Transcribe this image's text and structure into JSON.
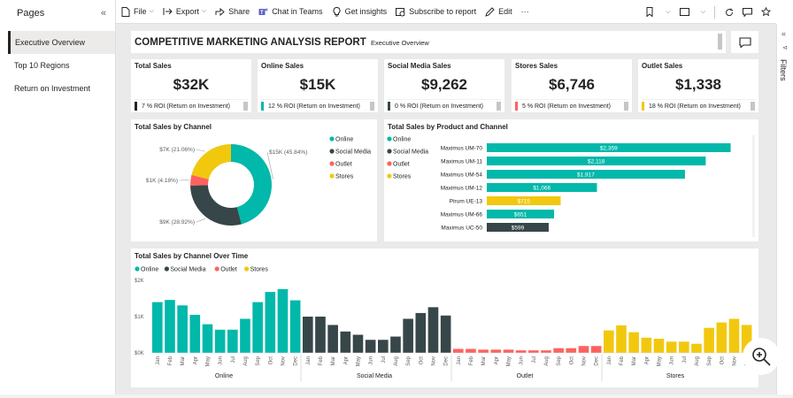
{
  "pages_pane": {
    "title": "Pages",
    "items": [
      {
        "label": "Executive Overview"
      },
      {
        "label": "Top 10 Regions"
      },
      {
        "label": "Return on Investment"
      }
    ]
  },
  "toolbar": {
    "file": "File",
    "export": "Export",
    "share": "Share",
    "chat": "Chat in Teams",
    "insights": "Get insights",
    "subscribe": "Subscribe to report",
    "edit": "Edit",
    "more": "···"
  },
  "filters_pane": {
    "label": "Filters"
  },
  "report": {
    "title": "COMPETITIVE MARKETING ANALYSIS REPORT",
    "subtitle": "Executive Overview"
  },
  "kpis": [
    {
      "title": "Total Sales",
      "value": "$32K",
      "roi": "7 % ROI (Return on Investment)",
      "color": "#252423"
    },
    {
      "title": "Online Sales",
      "value": "$15K",
      "roi": "12 % ROI (Return on Investment)",
      "color": "#01b8aa"
    },
    {
      "title": "Social Media Sales",
      "value": "$9,262",
      "roi": "0 % ROI (Return on Investment)",
      "color": "#374649"
    },
    {
      "title": "Stores Sales",
      "value": "$6,746",
      "roi": "5 % ROI (Return on Investment)",
      "color": "#fd625e"
    },
    {
      "title": "Outlet Sales",
      "value": "$1,338",
      "roi": "18 % ROI (Return on Investment)",
      "color": "#f2c80f"
    }
  ],
  "colors": {
    "online": "#01b8aa",
    "social": "#374649",
    "outlet": "#fd625e",
    "stores": "#f2c80f"
  },
  "chart_data": [
    {
      "type": "pie",
      "title": "Total Sales by Channel",
      "legend": [
        "Online",
        "Social Media",
        "Outlet",
        "Stores"
      ],
      "slices": [
        {
          "name": "Online",
          "value": 15,
          "label": "$15K (45.84%)",
          "percent": 45.84
        },
        {
          "name": "Social Media",
          "value": 9,
          "label": "$9K (28.92%)",
          "percent": 28.92
        },
        {
          "name": "Outlet",
          "value": 1,
          "label": "$1K (4.18%)",
          "percent": 4.18
        },
        {
          "name": "Stores",
          "value": 7,
          "label": "$7K (21.06%)",
          "percent": 21.06
        }
      ]
    },
    {
      "type": "bar",
      "title": "Total Sales by Product and Channel",
      "legend": [
        "Online",
        "Social Media",
        "Outlet",
        "Stores"
      ],
      "categories": [
        "Maximus UM-70",
        "Maximus UM-11",
        "Maximus UM-54",
        "Maximus UM-12",
        "Pirum UE-13",
        "Maximus UM-66",
        "Maximus UC-50"
      ],
      "values": [
        2359,
        2118,
        1917,
        1066,
        715,
        651,
        599
      ],
      "labels": [
        "$2,359",
        "$2,118",
        "$1,917",
        "$1,066",
        "$715",
        "$651",
        "$599"
      ],
      "bar_channels": [
        "Online",
        "Online",
        "Online",
        "Online",
        "Stores",
        "Online",
        "Social Media"
      ],
      "xlim": [
        0,
        2500
      ]
    },
    {
      "type": "bar",
      "title": "Total Sales by Channel Over Time",
      "legend": [
        "Online",
        "Social Media",
        "Outlet",
        "Stores"
      ],
      "y_ticks": [
        "$0K",
        "$1K",
        "$2K"
      ],
      "ylim": [
        0,
        2000
      ],
      "months": [
        "Jan",
        "Feb",
        "Mar",
        "Apr",
        "May",
        "Jun",
        "Jul",
        "Aug",
        "Sep",
        "Oct",
        "Nov",
        "Dec"
      ],
      "series": [
        {
          "name": "Online",
          "values": [
            1400,
            1460,
            1310,
            1050,
            790,
            640,
            640,
            940,
            1400,
            1680,
            1760,
            1450
          ]
        },
        {
          "name": "Social Media",
          "values": [
            1000,
            1000,
            770,
            590,
            500,
            360,
            360,
            450,
            940,
            1100,
            1260,
            1030
          ]
        },
        {
          "name": "Outlet",
          "values": [
            110,
            110,
            90,
            90,
            90,
            70,
            70,
            70,
            130,
            130,
            190,
            190
          ]
        },
        {
          "name": "Stores",
          "values": [
            620,
            760,
            570,
            420,
            390,
            310,
            310,
            250,
            690,
            840,
            940,
            770
          ]
        }
      ]
    }
  ],
  "time_chart_legend": [
    "Online",
    "Social Media",
    "Outlet",
    "Stores"
  ]
}
